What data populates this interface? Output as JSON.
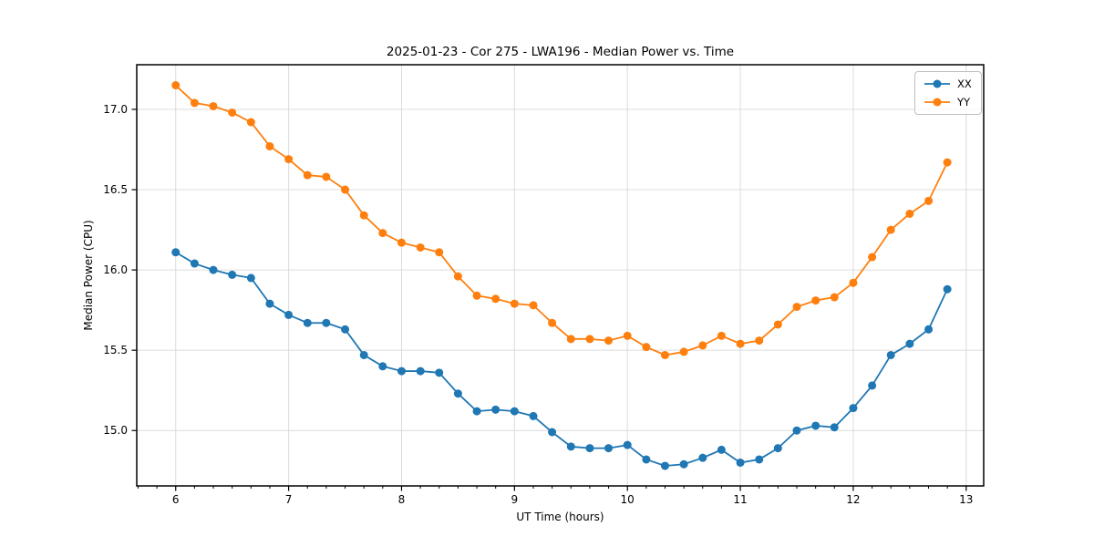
{
  "chart_data": {
    "type": "line",
    "title": "2025-01-23 - Cor 275 - LWA196 - Median Power vs. Time",
    "xlabel": "UT Time (hours)",
    "ylabel": "Median Power (CPU)",
    "xlim": [
      5.655,
      13.155
    ],
    "ylim": [
      14.655,
      17.278
    ],
    "grid": true,
    "legend_position": "upper right",
    "x_major_ticks": [
      6,
      7,
      8,
      9,
      10,
      11,
      12,
      13
    ],
    "x_tick_labels": [
      "6",
      "7",
      "8",
      "9",
      "10",
      "11",
      "12",
      "13"
    ],
    "x_minor_tick_step": 0.166667,
    "y_major_ticks": [
      15.0,
      15.5,
      16.0,
      16.5,
      17.0
    ],
    "y_tick_labels": [
      "15.0",
      "15.5",
      "16.0",
      "16.5",
      "17.0"
    ],
    "x": [
      6.0,
      6.167,
      6.333,
      6.5,
      6.667,
      6.833,
      7.0,
      7.167,
      7.333,
      7.5,
      7.667,
      7.833,
      8.0,
      8.167,
      8.333,
      8.5,
      8.667,
      8.833,
      9.0,
      9.167,
      9.333,
      9.5,
      9.667,
      9.833,
      10.0,
      10.167,
      10.333,
      10.5,
      10.667,
      10.833,
      11.0,
      11.167,
      11.333,
      11.5,
      11.667,
      11.833,
      12.0,
      12.167,
      12.333,
      12.5,
      12.667,
      12.833
    ],
    "series": [
      {
        "name": "XX",
        "color": "#1f77b4",
        "values": [
          16.11,
          16.04,
          16.0,
          15.97,
          15.95,
          15.79,
          15.72,
          15.67,
          15.67,
          15.63,
          15.47,
          15.4,
          15.37,
          15.37,
          15.36,
          15.23,
          15.12,
          15.13,
          15.12,
          15.09,
          14.99,
          14.9,
          14.89,
          14.89,
          14.91,
          14.82,
          14.78,
          14.79,
          14.83,
          14.88,
          14.8,
          14.82,
          14.89,
          15.0,
          15.03,
          15.02,
          15.14,
          15.28,
          15.47,
          15.54,
          15.63,
          15.88
        ]
      },
      {
        "name": "YY",
        "color": "#ff7f0e",
        "values": [
          17.15,
          17.04,
          17.02,
          16.98,
          16.92,
          16.77,
          16.69,
          16.59,
          16.58,
          16.5,
          16.34,
          16.23,
          16.17,
          16.14,
          16.11,
          15.96,
          15.84,
          15.82,
          15.79,
          15.78,
          15.67,
          15.57,
          15.57,
          15.56,
          15.59,
          15.52,
          15.47,
          15.49,
          15.53,
          15.59,
          15.54,
          15.56,
          15.66,
          15.77,
          15.81,
          15.83,
          15.92,
          16.08,
          16.25,
          16.35,
          16.43,
          16.67
        ]
      }
    ]
  }
}
